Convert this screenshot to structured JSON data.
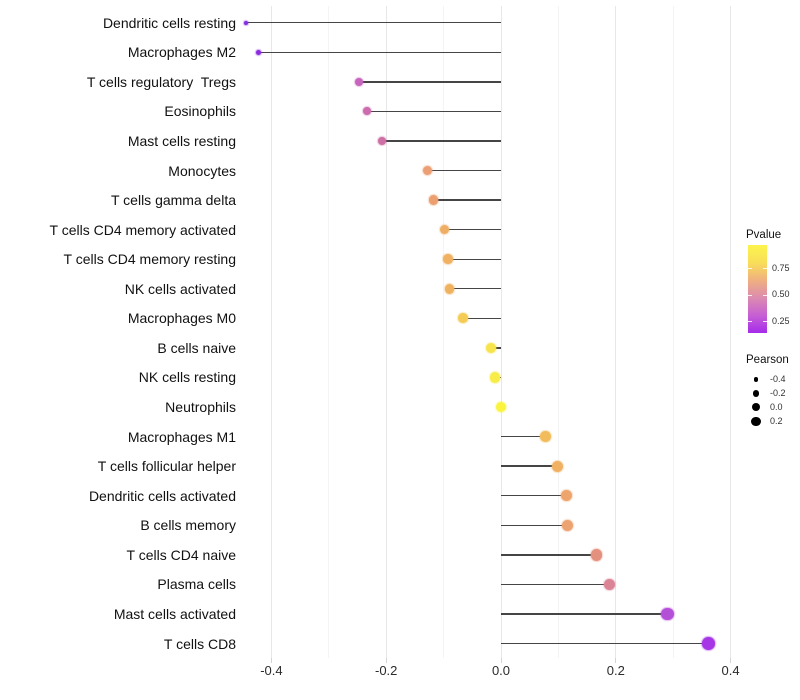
{
  "chart_data": {
    "type": "lollipop",
    "title": "",
    "xlabel": "",
    "ylabel": "",
    "x_axis": {
      "tick_labels": [
        "-0.4",
        "-0.2",
        "0.0",
        "0.2",
        "0.4"
      ],
      "tick_values": [
        -0.4,
        -0.2,
        0.0,
        0.2,
        0.4
      ],
      "range": [
        -0.45,
        0.45
      ],
      "gridline_step": 0.1,
      "grid": true
    },
    "categories": [
      "Dendritic cells resting",
      "Macrophages M2",
      "T cells regulatory  Tregs",
      "Eosinophils",
      "Mast cells resting",
      "Monocytes",
      "T cells gamma delta",
      "T cells CD4 memory activated",
      "T cells CD4 memory resting",
      "NK cells activated",
      "Macrophages M0",
      "B cells naive",
      "NK cells resting",
      "Neutrophils",
      "Macrophages M1",
      "T cells follicular helper",
      "Dendritic cells activated",
      "B cells memory",
      "T cells CD4 naive",
      "Plasma cells",
      "Mast cells activated",
      "T cells CD8"
    ],
    "series": [
      {
        "name": "Pearson",
        "values": [
          -0.445,
          -0.423,
          -0.247,
          -0.234,
          -0.207,
          -0.128,
          -0.118,
          -0.098,
          -0.092,
          -0.09,
          -0.066,
          -0.018,
          -0.01,
          0.0,
          0.078,
          0.098,
          0.114,
          0.116,
          0.166,
          0.189,
          0.29,
          0.361
        ]
      }
    ],
    "point_colors": [
      "#8430DE",
      "#8C2BE0",
      "#C765BE",
      "#CC6BAD",
      "#CE6FA6",
      "#EC9F74",
      "#EC9F70",
      "#EFAE66",
      "#F0B162",
      "#F0B25F",
      "#F4CC55",
      "#F7E44C",
      "#F8EC48",
      "#FAF43F",
      "#F2BC5D",
      "#F0B163",
      "#EDA56D",
      "#ECA271",
      "#E4907E",
      "#DB8495",
      "#B44FD8",
      "#A636E6"
    ],
    "legend": {
      "pvalue": {
        "title": "Pvalue",
        "tick_labels": [
          "0.75",
          "0.50",
          "0.25"
        ],
        "tick_values": [
          0.75,
          0.5,
          0.25
        ],
        "gradient_colors_top_to_bottom": [
          "#FCF44D",
          "#F9DE59",
          "#F0B080",
          "#DC8BB0",
          "#C65FD4",
          "#A62BEB"
        ]
      },
      "pearson": {
        "title": "Pearson",
        "labels": [
          "-0.4",
          "-0.2",
          "0.0",
          "0.2"
        ],
        "values": [
          -0.4,
          -0.2,
          0.0,
          0.2
        ],
        "dot_color": "#000000"
      }
    },
    "colors": {
      "background": "#ffffff",
      "stem": "#454545",
      "grid_major": "#e7e7e7",
      "grid_minor": "#f4f4f4",
      "axis_text": "#2b2b2b",
      "category_text": "#111111"
    }
  }
}
